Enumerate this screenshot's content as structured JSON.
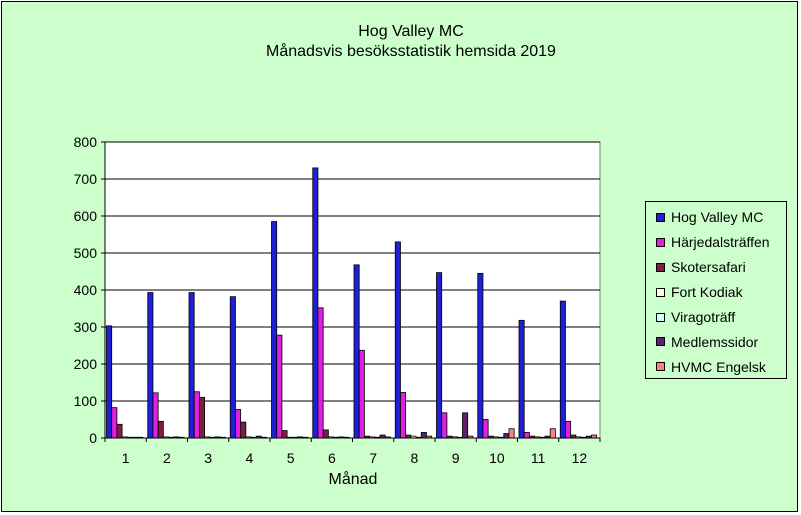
{
  "chart_data": {
    "type": "bar",
    "title": "Hog Valley MC",
    "subtitle": "Månadsvis besöksstatistik hemsida 2019",
    "xlabel": "Månad",
    "ylabel": "",
    "ylim": [
      0,
      800
    ],
    "yticks": [
      "0",
      "100",
      "200",
      "300",
      "400",
      "500",
      "600",
      "700",
      "800"
    ],
    "grid": true,
    "legend_position": "right",
    "categories": [
      "1",
      "2",
      "3",
      "4",
      "5",
      "6",
      "7",
      "8",
      "9",
      "10",
      "11",
      "12"
    ],
    "series": [
      {
        "name": "Hog Valley MC",
        "color": "#1f1fd6",
        "values": [
          303,
          393,
          393,
          382,
          585,
          730,
          468,
          530,
          447,
          445,
          318,
          370
        ]
      },
      {
        "name": "Härjedalsträffen",
        "color": "#e020e0",
        "values": [
          82,
          122,
          125,
          77,
          278,
          352,
          237,
          123,
          68,
          50,
          15,
          45
        ]
      },
      {
        "name": "Skotersafari",
        "color": "#7f1f3f",
        "values": [
          37,
          45,
          110,
          43,
          20,
          22,
          5,
          8,
          5,
          5,
          5,
          8
        ]
      },
      {
        "name": "Fort Kodiak",
        "color": "#ffffcc",
        "values": [
          3,
          3,
          3,
          3,
          2,
          3,
          3,
          5,
          3,
          3,
          3,
          3
        ]
      },
      {
        "name": "Viragoträff",
        "color": "#ccffff",
        "values": [
          2,
          2,
          2,
          2,
          2,
          2,
          2,
          2,
          2,
          2,
          2,
          2
        ]
      },
      {
        "name": "Medlemssidor",
        "color": "#5f1f6f",
        "values": [
          2,
          3,
          3,
          5,
          3,
          3,
          8,
          15,
          68,
          12,
          5,
          5
        ]
      },
      {
        "name": "HVMC Engelsk",
        "color": "#ff8080",
        "values": [
          2,
          2,
          2,
          2,
          2,
          2,
          3,
          5,
          5,
          25,
          25,
          8
        ]
      }
    ]
  }
}
